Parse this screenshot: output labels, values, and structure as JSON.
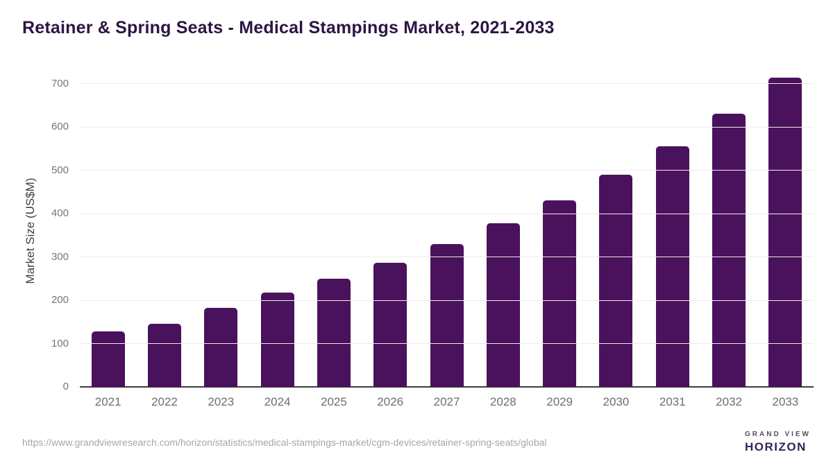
{
  "chart_data": {
    "type": "bar",
    "title": "Retainer & Spring Seats - Medical Stampings Market, 2021-2033",
    "categories": [
      "2021",
      "2022",
      "2023",
      "2024",
      "2025",
      "2026",
      "2027",
      "2028",
      "2029",
      "2030",
      "2031",
      "2032",
      "2033"
    ],
    "values": [
      128,
      146,
      182,
      217,
      249,
      287,
      329,
      377,
      430,
      489,
      556,
      631,
      713
    ],
    "xlabel": "",
    "ylabel": "Market Size (US$M)",
    "ylim": [
      0,
      700
    ],
    "yticks": [
      0,
      100,
      200,
      300,
      400,
      500,
      600,
      700
    ],
    "grid": true,
    "legend_position": "none",
    "bar_color": "#4a115c"
  },
  "colors": {
    "title_text": "#2c1543",
    "bar_fill": "#4a115c",
    "gridline": "#ececec",
    "axis_line": "#3c3c3c",
    "tick_text": "#757575",
    "url_text": "#a6a6a6",
    "logo_purple": "#2e1a47",
    "logo_blue": "#56c5ef",
    "logo_horizon_text": "#372258"
  },
  "footer": {
    "source_url": "https://www.grandviewresearch.com/horizon/statistics/medical-stampings-market/cgm-devices/retainer-spring-seats/global",
    "logo": {
      "top_text": "GRAND VIEW",
      "bottom_text": "HORIZON"
    }
  }
}
